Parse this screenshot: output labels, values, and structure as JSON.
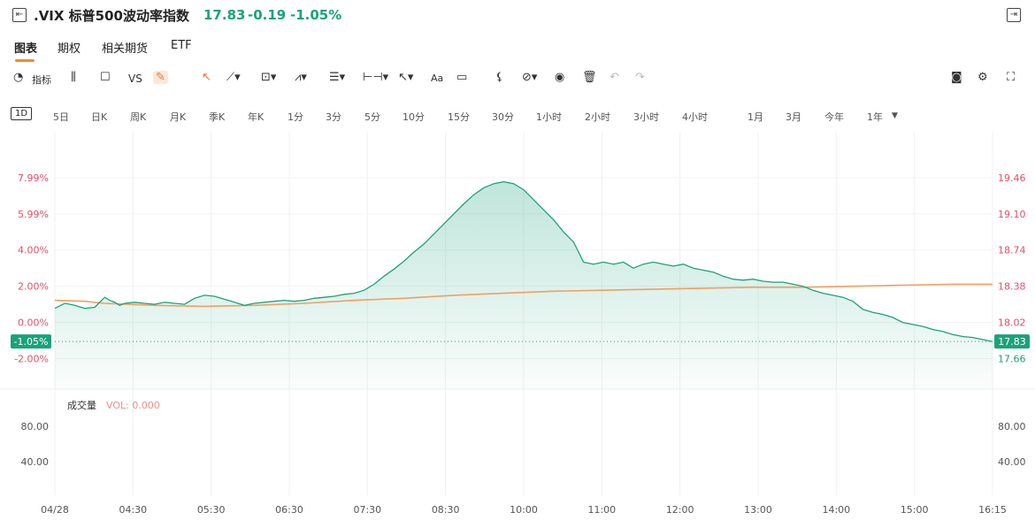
{
  "header": {
    "back_icon": "collapse-left-icon",
    "title": ".VIX 标普500波动率指数",
    "price": "17.83",
    "change": "-0.19",
    "change_pct": "-1.05%",
    "expand_icon": "expand-panel-icon"
  },
  "tabs": [
    {
      "label": "图表",
      "active": true
    },
    {
      "label": "期权",
      "active": false
    },
    {
      "label": "相关期货",
      "active": false
    },
    {
      "label": "ETF",
      "active": false
    }
  ],
  "toolbar": {
    "indicator_label": "指标",
    "vs_label": "VS",
    "text_tool_label": "Aa"
  },
  "periods": [
    "1D",
    "5日",
    "日K",
    "周K",
    "月K",
    "季K",
    "年K",
    "1分",
    "3分",
    "5分",
    "10分",
    "15分",
    "30分",
    "1小时",
    "2小时",
    "3小时",
    "4小时",
    "1月",
    "3月",
    "今年",
    "1年"
  ],
  "colors": {
    "up": "#1ba27a",
    "down_pct": "#e0506a",
    "ma": "#f0a060",
    "accent": "#f28a2e"
  },
  "chart_data": {
    "type": "area",
    "left_axis_ticks": [
      "7.99%",
      "5.99%",
      "4.00%",
      "2.00%",
      "0.00%",
      "-2.00%"
    ],
    "right_axis_ticks": [
      "19.46",
      "19.10",
      "18.74",
      "18.38",
      "18.02",
      "17.66"
    ],
    "current_pct_label": "-1.05%",
    "current_price_label": "17.83",
    "x_tick_labels": [
      "04/28",
      "04:30",
      "05:30",
      "06:30",
      "07:30",
      "08:30",
      "10:00",
      "11:00",
      "12:00",
      "13:00",
      "14:00",
      "15:00",
      "16:15"
    ],
    "ylim_pct": [
      -2.2,
      8.2
    ],
    "price_series": [
      [
        0,
        18.16
      ],
      [
        2,
        18.21
      ],
      [
        4,
        18.19
      ],
      [
        6,
        18.16
      ],
      [
        8,
        18.17
      ],
      [
        9,
        18.22
      ],
      [
        10,
        18.27
      ],
      [
        11,
        18.24
      ],
      [
        12,
        18.22
      ],
      [
        13,
        18.19
      ],
      [
        14,
        18.21
      ],
      [
        16,
        18.22
      ],
      [
        18,
        18.21
      ],
      [
        20,
        18.2
      ],
      [
        22,
        18.22
      ],
      [
        24,
        18.21
      ],
      [
        26,
        18.2
      ],
      [
        28,
        18.26
      ],
      [
        30,
        18.29
      ],
      [
        32,
        18.28
      ],
      [
        34,
        18.25
      ],
      [
        36,
        18.22
      ],
      [
        38,
        18.19
      ],
      [
        40,
        18.21
      ],
      [
        42,
        18.22
      ],
      [
        44,
        18.23
      ],
      [
        46,
        18.24
      ],
      [
        48,
        18.23
      ],
      [
        50,
        18.24
      ],
      [
        52,
        18.26
      ],
      [
        54,
        18.27
      ],
      [
        56,
        18.28
      ],
      [
        58,
        18.3
      ],
      [
        60,
        18.31
      ],
      [
        62,
        18.34
      ],
      [
        64,
        18.4
      ],
      [
        66,
        18.48
      ],
      [
        68,
        18.55
      ],
      [
        70,
        18.63
      ],
      [
        72,
        18.72
      ],
      [
        74,
        18.8
      ],
      [
        76,
        18.9
      ],
      [
        78,
        19.0
      ],
      [
        80,
        19.1
      ],
      [
        82,
        19.2
      ],
      [
        84,
        19.29
      ],
      [
        86,
        19.36
      ],
      [
        88,
        19.4
      ],
      [
        90,
        19.42
      ],
      [
        92,
        19.4
      ],
      [
        94,
        19.34
      ],
      [
        96,
        19.24
      ],
      [
        98,
        19.14
      ],
      [
        100,
        19.04
      ],
      [
        102,
        18.92
      ],
      [
        104,
        18.82
      ],
      [
        105,
        18.72
      ],
      [
        106,
        18.62
      ],
      [
        108,
        18.6
      ],
      [
        110,
        18.62
      ],
      [
        112,
        18.6
      ],
      [
        114,
        18.62
      ],
      [
        116,
        18.56
      ],
      [
        118,
        18.6
      ],
      [
        120,
        18.62
      ],
      [
        122,
        18.6
      ],
      [
        124,
        18.58
      ],
      [
        126,
        18.6
      ],
      [
        128,
        18.56
      ],
      [
        130,
        18.54
      ],
      [
        132,
        18.52
      ],
      [
        134,
        18.48
      ],
      [
        136,
        18.45
      ],
      [
        138,
        18.44
      ],
      [
        140,
        18.45
      ],
      [
        142,
        18.43
      ],
      [
        144,
        18.42
      ],
      [
        146,
        18.42
      ],
      [
        148,
        18.4
      ],
      [
        150,
        18.38
      ],
      [
        152,
        18.34
      ],
      [
        154,
        18.31
      ],
      [
        156,
        18.29
      ],
      [
        158,
        18.27
      ],
      [
        160,
        18.23
      ],
      [
        162,
        18.15
      ],
      [
        164,
        18.12
      ],
      [
        166,
        18.1
      ],
      [
        168,
        18.07
      ],
      [
        170,
        18.02
      ],
      [
        172,
        18.0
      ],
      [
        174,
        17.98
      ],
      [
        176,
        17.95
      ],
      [
        178,
        17.93
      ],
      [
        180,
        17.9
      ],
      [
        182,
        17.88
      ],
      [
        184,
        17.87
      ],
      [
        186,
        17.85
      ],
      [
        188,
        17.83
      ]
    ],
    "ma_series": [
      [
        0,
        18.24
      ],
      [
        6,
        18.23
      ],
      [
        10,
        18.21
      ],
      [
        20,
        18.19
      ],
      [
        30,
        18.18
      ],
      [
        40,
        18.19
      ],
      [
        50,
        18.21
      ],
      [
        60,
        18.24
      ],
      [
        70,
        18.26
      ],
      [
        80,
        18.29
      ],
      [
        90,
        18.31
      ],
      [
        100,
        18.33
      ],
      [
        110,
        18.34
      ],
      [
        120,
        18.35
      ],
      [
        130,
        18.36
      ],
      [
        140,
        18.37
      ],
      [
        150,
        18.37
      ],
      [
        160,
        18.38
      ],
      [
        170,
        18.39
      ],
      [
        180,
        18.4
      ],
      [
        188,
        18.4
      ]
    ],
    "volume_panel": {
      "title": "成交量",
      "vol_label": "VOL: 0.000",
      "ticks": [
        "80.00",
        "40.00"
      ]
    }
  }
}
